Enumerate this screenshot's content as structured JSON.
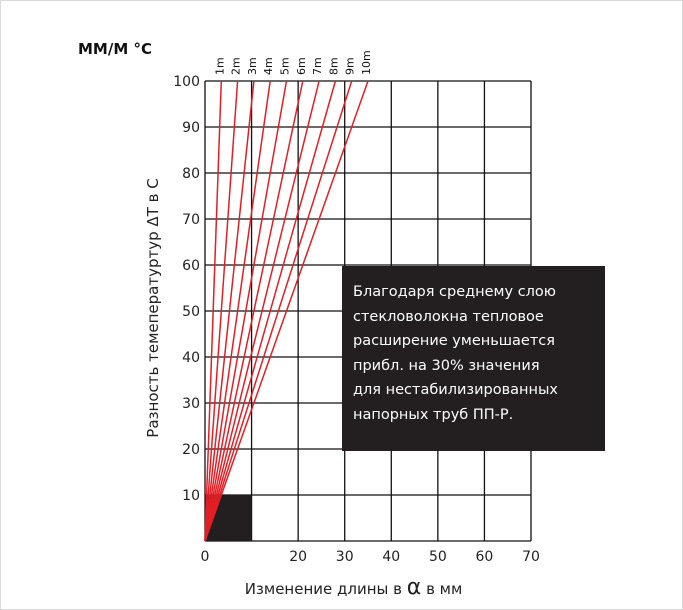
{
  "chart_data": {
    "type": "line",
    "unit_label": "ММ/М °C",
    "ylabel": "Разность темепературтур ΔT в C",
    "xlabel": {
      "before": "Изменение длины в",
      "symbol": "α",
      "after": "в мм"
    },
    "xlim": [
      0,
      70
    ],
    "ylim": [
      0,
      100
    ],
    "x_ticks": [
      0,
      20,
      30,
      40,
      50,
      60,
      70
    ],
    "y_ticks": [
      10,
      20,
      30,
      40,
      50,
      60,
      70,
      80,
      90,
      100
    ],
    "grid": true,
    "line_color": "#e31e24",
    "series": [
      {
        "name": "1m",
        "x": [
          0,
          3.5
        ],
        "y": [
          0,
          100
        ]
      },
      {
        "name": "2m",
        "x": [
          0,
          7
        ],
        "y": [
          0,
          100
        ]
      },
      {
        "name": "3m",
        "x": [
          0,
          10.5
        ],
        "y": [
          0,
          100
        ]
      },
      {
        "name": "4m",
        "x": [
          0,
          14
        ],
        "y": [
          0,
          100
        ]
      },
      {
        "name": "5m",
        "x": [
          0,
          17.5
        ],
        "y": [
          0,
          100
        ]
      },
      {
        "name": "6m",
        "x": [
          0,
          21
        ],
        "y": [
          0,
          100
        ]
      },
      {
        "name": "7m",
        "x": [
          0,
          24.5
        ],
        "y": [
          0,
          100
        ]
      },
      {
        "name": "8m",
        "x": [
          0,
          28
        ],
        "y": [
          0,
          100
        ]
      },
      {
        "name": "9m",
        "x": [
          0,
          31.5
        ],
        "y": [
          0,
          100
        ]
      },
      {
        "name": "10m",
        "x": [
          0,
          35
        ],
        "y": [
          0,
          100
        ]
      }
    ],
    "highlight_region": {
      "x": [
        0,
        10
      ],
      "y": [
        0,
        10
      ],
      "color": "#231f20"
    },
    "annotation": [
      "Благодаря среднему слою",
      "стекловолокна тепловое",
      "расширение уменьшается",
      "прибл. на 30% значения",
      "для нестабилизированных",
      "напорных труб ПП-Р."
    ]
  }
}
